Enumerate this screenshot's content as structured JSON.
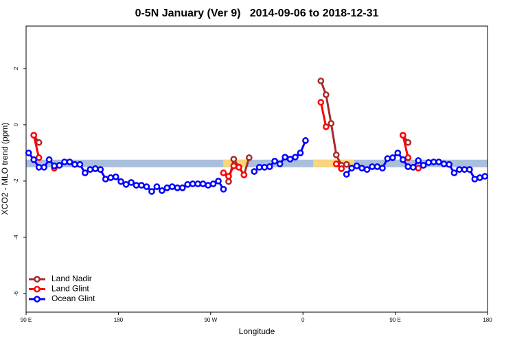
{
  "chart_data": {
    "type": "line",
    "title": "0-5N January (Ver 9)   2014-09-06 to 2018-12-31",
    "x_label": "Longitude",
    "y_label": "XCO2 - MLO trend (ppm)",
    "xlim": [
      90,
      540
    ],
    "ylim": [
      -6.66,
      3.51
    ],
    "xticks": [
      {
        "value": 90,
        "label": "90 E"
      },
      {
        "value": 180,
        "label": "180"
      },
      {
        "value": 270,
        "label": "90 W"
      },
      {
        "value": 360,
        "label": "0"
      },
      {
        "value": 450,
        "label": "90 E"
      },
      {
        "value": 540,
        "label": "180"
      }
    ],
    "yticks": [
      -6,
      -4,
      -2,
      0,
      2
    ],
    "legend": "bottom-left",
    "band": {
      "ylim": [
        -1.51,
        -1.24
      ],
      "color": "#a9bfdc",
      "highlights": [
        {
          "xlim": [
            282.3,
            305.7
          ],
          "color": "#f8d57e"
        },
        {
          "xlim": [
            370,
            409.6
          ],
          "color": "#f8d57e"
        }
      ]
    },
    "series": [
      {
        "name": "Land Nadir",
        "color": "#a52a2a",
        "x": [
          97.5,
          102.5,
          107.5,
          287.5,
          292.5,
          297.5,
          302.5,
          307.5,
          312.5,
          377.5,
          382.5,
          387.5,
          392.5,
          397.5,
          402.5,
          407.5,
          457.5,
          462.5
        ],
        "values": [
          -0.37,
          -0.63,
          null,
          -2.02,
          -1.22,
          -1.5,
          -1.78,
          -1.17,
          null,
          1.56,
          1.07,
          0.05,
          -1.07,
          -1.44,
          -1.41,
          null,
          -0.37,
          -0.63
        ]
      },
      {
        "name": "Land Glint",
        "color": "#ff0000",
        "x": [
          97.5,
          102.5,
          107.5,
          117.5,
          122.5,
          282.5,
          287.5,
          292.5,
          297.5,
          302.5,
          307.5,
          377.5,
          382.5,
          387.5,
          392.5,
          397.5,
          402.5,
          457.5,
          462.5,
          467.5,
          472.5
        ],
        "values": [
          -0.37,
          -1.17,
          null,
          -1.54,
          null,
          -1.71,
          -1.83,
          -1.46,
          -1.51,
          -1.78,
          null,
          0.8,
          -0.07,
          null,
          -1.39,
          -1.56,
          null,
          -0.37,
          -1.17,
          null,
          -1.54
        ]
      },
      {
        "name": "Ocean Glint",
        "color": "#0000ff",
        "x": [
          92.5,
          97.5,
          102.5,
          107.5,
          112.5,
          117.5,
          122.5,
          127.5,
          132.5,
          137.5,
          142.5,
          147.5,
          152.5,
          157.5,
          162.5,
          167.5,
          172.5,
          177.5,
          182.5,
          187.5,
          192.5,
          197.5,
          202.5,
          207.5,
          212.5,
          217.5,
          222.5,
          227.5,
          232.5,
          237.5,
          242.5,
          247.5,
          252.5,
          257.5,
          262.5,
          267.5,
          272.5,
          277.5,
          282.5,
          287.5,
          292.5,
          297.5,
          302.5,
          307.5,
          312.5,
          317.5,
          322.5,
          327.5,
          332.5,
          337.5,
          342.5,
          347.5,
          352.5,
          357.5,
          362.5,
          367.5,
          372.5,
          377.5,
          382.5,
          387.5,
          392.5,
          397.5,
          402.5,
          407.5,
          412.5,
          417.5,
          422.5,
          427.5,
          432.5,
          437.5,
          442.5,
          447.5,
          452.5,
          457.5,
          462.5,
          467.5,
          472.5,
          477.5,
          482.5,
          487.5,
          492.5,
          497.5,
          502.5,
          507.5,
          512.5,
          517.5,
          522.5,
          527.5,
          532.5,
          537.5
        ],
        "values": [
          -1.0,
          -1.24,
          -1.51,
          -1.51,
          -1.24,
          -1.46,
          -1.44,
          -1.32,
          -1.32,
          -1.41,
          -1.41,
          -1.71,
          -1.59,
          -1.56,
          -1.59,
          -1.93,
          -1.88,
          -1.85,
          -2.02,
          -2.12,
          -2.05,
          -2.15,
          -2.15,
          -2.2,
          -2.37,
          -2.2,
          -2.34,
          -2.24,
          -2.2,
          -2.24,
          -2.24,
          -2.12,
          -2.1,
          -2.1,
          -2.1,
          -2.15,
          -2.1,
          -2.0,
          -2.29,
          null,
          null,
          null,
          null,
          null,
          -1.66,
          -1.51,
          -1.51,
          -1.49,
          -1.29,
          -1.39,
          -1.15,
          -1.22,
          -1.15,
          -1.0,
          -0.56,
          null,
          null,
          null,
          null,
          null,
          null,
          null,
          -1.76,
          -1.54,
          -1.46,
          -1.54,
          -1.59,
          -1.49,
          -1.49,
          -1.54,
          -1.2,
          -1.17,
          -1.0,
          -1.24,
          -1.49,
          -1.51,
          -1.27,
          -1.44,
          -1.34,
          -1.32,
          -1.32,
          -1.39,
          -1.41,
          -1.71,
          -1.59,
          -1.59,
          -1.59,
          -1.93,
          -1.88,
          -1.83
        ]
      }
    ]
  }
}
